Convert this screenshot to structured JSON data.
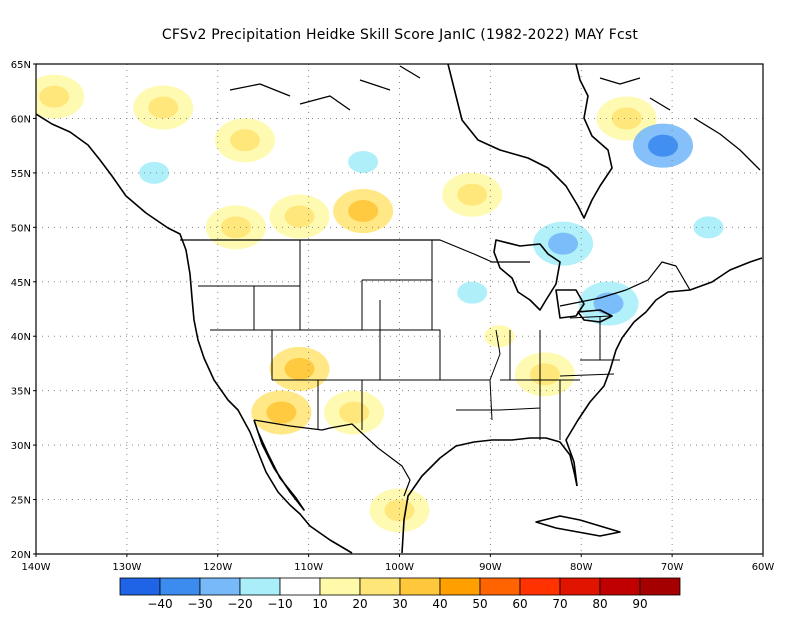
{
  "title": "CFSv2  Precipitation Heidke Skill Score JanIC (1982-2022) MAY Fcst",
  "map": {
    "lat_labels": [
      "65N",
      "60N",
      "55N",
      "50N",
      "45N",
      "40N",
      "35N",
      "30N",
      "25N",
      "20N"
    ],
    "lon_labels": [
      "140W",
      "130W",
      "120W",
      "110W",
      "100W",
      "90W",
      "80W",
      "70W",
      "60W"
    ],
    "lat_range": [
      20,
      65
    ],
    "lon_range": [
      -140,
      -60
    ]
  },
  "colorbar": {
    "colors": [
      "#1f64e6",
      "#3c8cf0",
      "#78b9fa",
      "#aaeefa",
      "#ffffff",
      "#fffaaa",
      "#ffe678",
      "#ffc83c",
      "#ffa000",
      "#ff6400",
      "#ff3200",
      "#e11400",
      "#c00000",
      "#a50000"
    ],
    "labels": [
      "−40",
      "−30",
      "−20",
      "−10",
      "10",
      "20",
      "30",
      "40",
      "50",
      "60",
      "70",
      "80",
      "90"
    ]
  },
  "patches": [
    {
      "lon": -138,
      "lat": 62,
      "level": 20
    },
    {
      "lon": -126,
      "lat": 61,
      "level": 20
    },
    {
      "lon": -117,
      "lat": 58,
      "level": 20
    },
    {
      "lon": -111,
      "lat": 51,
      "level": 20
    },
    {
      "lon": -104,
      "lat": 51.5,
      "level": 30
    },
    {
      "lon": -118,
      "lat": 50,
      "level": 20
    },
    {
      "lon": -111,
      "lat": 37,
      "level": 30
    },
    {
      "lon": -113,
      "lat": 33,
      "level": 30
    },
    {
      "lon": -105,
      "lat": 33,
      "level": 20
    },
    {
      "lon": -100,
      "lat": 24,
      "level": 20
    },
    {
      "lon": -92,
      "lat": 53,
      "level": 20
    },
    {
      "lon": -84,
      "lat": 36.5,
      "level": 20
    },
    {
      "lon": -89,
      "lat": 40,
      "level": 10
    },
    {
      "lon": -75,
      "lat": 60,
      "level": 20
    },
    {
      "lon": -71,
      "lat": 57.5,
      "level": -30
    },
    {
      "lon": -82,
      "lat": 48.5,
      "level": -20
    },
    {
      "lon": -77,
      "lat": 43,
      "level": -20
    },
    {
      "lon": -92,
      "lat": 44,
      "level": -10
    },
    {
      "lon": -127,
      "lat": 55,
      "level": -10
    },
    {
      "lon": -104,
      "lat": 56,
      "level": -10
    },
    {
      "lon": -66,
      "lat": 50,
      "level": -10
    }
  ]
}
